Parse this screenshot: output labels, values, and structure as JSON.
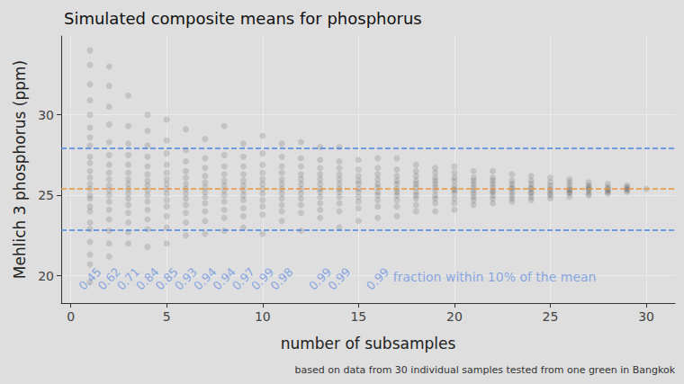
{
  "chart_data": {
    "type": "scatter",
    "title": "Simulated composite means for phosphorus",
    "x_label": "number of subsamples",
    "y_label": "Mehlich 3 phosphorus (ppm)",
    "caption": "based on data from 30 individual samples tested from one green in Bangkok",
    "color": "#000000",
    "grid": true,
    "xlim": [
      -0.5,
      31.5
    ],
    "xticks": [
      0,
      5,
      10,
      15,
      20,
      25,
      30
    ],
    "ylim": [
      18.3,
      34.9
    ],
    "yticks": [
      20,
      25,
      30
    ],
    "mean": 25.4,
    "mean_color": "#e8963c",
    "bounds": [
      22.86,
      27.94
    ],
    "bounds_color": "#4a84e0",
    "x": [
      1,
      2,
      3,
      4,
      5,
      6,
      7,
      8,
      9,
      10,
      11,
      12,
      13,
      14,
      15,
      16,
      17,
      18,
      19,
      20,
      21,
      22,
      23,
      24,
      25,
      26,
      27,
      28,
      29,
      30
    ],
    "values": [
      [
        19.6,
        20.7,
        21.3,
        22.1,
        22.9,
        23.3,
        24.0,
        24.3,
        24.8,
        25.0,
        25.4,
        25.7,
        26.1,
        26.5,
        27.0,
        27.4,
        28.1,
        28.6,
        29.2,
        30.0,
        30.9,
        31.9,
        33.1,
        34.0
      ],
      [
        21.2,
        22.0,
        22.8,
        23.5,
        24.1,
        24.6,
        25.0,
        25.3,
        25.6,
        26.0,
        26.4,
        26.9,
        27.5,
        28.3,
        29.4,
        30.5,
        31.8,
        33.0
      ],
      [
        22.0,
        22.7,
        23.3,
        23.9,
        24.4,
        24.8,
        25.1,
        25.4,
        25.7,
        26.0,
        26.4,
        26.9,
        27.5,
        28.2,
        29.3,
        31.2
      ],
      [
        21.8,
        22.9,
        23.5,
        24.1,
        24.6,
        25.0,
        25.3,
        25.6,
        25.9,
        26.3,
        26.8,
        27.4,
        28.1,
        29.0,
        30.0
      ],
      [
        22.0,
        23.0,
        23.7,
        24.3,
        24.7,
        25.1,
        25.4,
        25.7,
        26.0,
        26.4,
        26.9,
        27.6,
        28.4,
        29.7
      ],
      [
        22.5,
        23.3,
        23.9,
        24.4,
        24.8,
        25.1,
        25.4,
        25.7,
        26.1,
        26.5,
        27.1,
        27.8,
        29.1
      ],
      [
        22.6,
        23.4,
        24.0,
        24.5,
        24.9,
        25.2,
        25.5,
        25.8,
        26.2,
        26.7,
        27.3,
        28.5
      ],
      [
        22.8,
        23.6,
        24.1,
        24.6,
        25.0,
        25.3,
        25.6,
        25.9,
        26.3,
        26.8,
        27.5,
        29.3
      ],
      [
        23.0,
        23.7,
        24.2,
        24.7,
        25.0,
        25.3,
        25.6,
        25.9,
        26.3,
        26.8,
        27.4,
        28.2
      ],
      [
        22.6,
        23.8,
        24.3,
        24.7,
        25.1,
        25.4,
        25.7,
        26.0,
        26.4,
        26.9,
        27.6,
        28.7
      ],
      [
        23.4,
        24.0,
        24.4,
        24.8,
        25.1,
        25.4,
        25.7,
        26.0,
        26.4,
        26.8,
        27.4,
        28.2
      ],
      [
        22.8,
        23.9,
        24.4,
        24.8,
        25.1,
        25.4,
        25.7,
        26.0,
        26.3,
        26.8,
        27.3,
        28.3
      ],
      [
        23.6,
        24.1,
        24.5,
        24.9,
        25.2,
        25.4,
        25.7,
        26.0,
        26.3,
        26.7,
        27.2,
        28.0
      ],
      [
        23.0,
        24.0,
        24.5,
        24.9,
        25.2,
        25.4,
        25.7,
        26.0,
        26.3,
        26.7,
        27.1,
        28.0
      ],
      [
        23.4,
        24.2,
        24.6,
        24.9,
        25.2,
        25.4,
        25.7,
        25.9,
        26.2,
        26.6,
        27.2
      ],
      [
        23.6,
        24.3,
        24.7,
        25.0,
        25.2,
        25.5,
        25.7,
        26.0,
        26.3,
        26.7,
        27.3
      ],
      [
        23.7,
        24.3,
        24.7,
        25.0,
        25.2,
        25.4,
        25.7,
        25.9,
        26.2,
        26.6,
        27.3
      ],
      [
        24.0,
        24.4,
        24.8,
        25.0,
        25.2,
        25.5,
        25.7,
        25.9,
        26.2,
        26.5,
        26.9
      ],
      [
        24.0,
        24.5,
        24.8,
        25.0,
        25.3,
        25.5,
        25.7,
        25.9,
        26.1,
        26.4,
        26.7
      ],
      [
        24.1,
        24.5,
        24.8,
        25.1,
        25.3,
        25.4,
        25.6,
        25.9,
        26.1,
        26.4,
        26.8
      ],
      [
        24.4,
        24.7,
        24.9,
        25.1,
        25.3,
        25.5,
        25.7,
        25.9,
        26.1,
        26.5
      ],
      [
        24.5,
        24.8,
        25.0,
        25.2,
        25.3,
        25.5,
        25.7,
        25.9,
        26.1,
        26.5
      ],
      [
        24.6,
        24.8,
        25.0,
        25.2,
        25.4,
        25.5,
        25.7,
        25.9,
        26.3
      ],
      [
        24.7,
        24.9,
        25.1,
        25.2,
        25.4,
        25.5,
        25.7,
        25.9,
        26.2
      ],
      [
        24.8,
        25.0,
        25.1,
        25.3,
        25.4,
        25.6,
        25.8,
        26.1
      ],
      [
        24.9,
        25.1,
        25.2,
        25.3,
        25.4,
        25.6,
        25.8,
        26.0
      ],
      [
        25.0,
        25.1,
        25.3,
        25.4,
        25.5,
        25.6,
        25.8
      ],
      [
        25.1,
        25.2,
        25.3,
        25.4,
        25.5,
        25.7
      ],
      [
        25.2,
        25.3,
        25.4,
        25.5,
        25.6
      ],
      [
        25.4
      ]
    ],
    "fractions": {
      "x": [
        1,
        2,
        3,
        4,
        5,
        6,
        7,
        8,
        9,
        10,
        11,
        13,
        14,
        16
      ],
      "values": [
        0.45,
        0.62,
        0.71,
        0.84,
        0.85,
        0.93,
        0.94,
        0.94,
        0.97,
        0.99,
        0.98,
        0.99,
        0.99,
        0.99
      ],
      "y": 19.8,
      "color": "#6f95e0"
    },
    "annotation": {
      "text": "fraction within 10% of the mean",
      "x": 16.8,
      "y": 19.9,
      "color": "#6f95e0"
    }
  }
}
